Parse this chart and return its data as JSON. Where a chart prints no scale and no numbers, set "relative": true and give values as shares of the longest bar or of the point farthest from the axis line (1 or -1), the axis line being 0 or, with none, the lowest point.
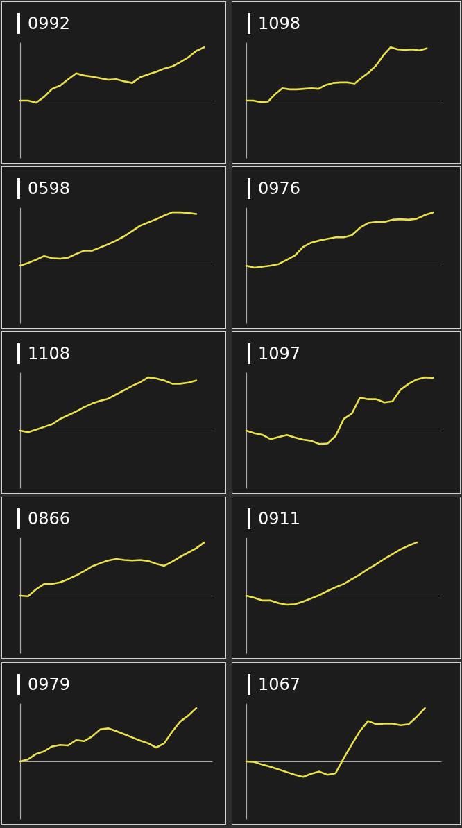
{
  "chart_data": [
    {
      "type": "line",
      "title": "0992",
      "categories": [
        null,
        null,
        null,
        null,
        null,
        null,
        null,
        null,
        null,
        null,
        null,
        null,
        null,
        null,
        null,
        null,
        null,
        null,
        null,
        null,
        null,
        null,
        null,
        null,
        null
      ],
      "values": [
        0,
        0,
        -0.04,
        0.07,
        0.22,
        0.28,
        0.4,
        0.51,
        0.47,
        0.45,
        0.42,
        0.39,
        0.4,
        0.36,
        0.33,
        0.44,
        0.49,
        0.54,
        0.6,
        0.64,
        0.72,
        0.81,
        0.93,
        1,
        null
      ],
      "color": "#ebe04b",
      "relative": true,
      "tick_labels": false
    },
    {
      "type": "line",
      "title": "1098",
      "categories": [
        null,
        null,
        null,
        null,
        null,
        null,
        null,
        null,
        null,
        null,
        null,
        null,
        null,
        null,
        null,
        null,
        null,
        null,
        null,
        null,
        null,
        null,
        null,
        null,
        null,
        null,
        null,
        null
      ],
      "values": [
        0,
        0,
        -0.03,
        -0.02,
        0.12,
        0.23,
        0.21,
        0.21,
        0.22,
        0.23,
        0.22,
        0.29,
        0.33,
        0.34,
        0.34,
        0.32,
        0.43,
        0.53,
        0.66,
        0.85,
        1,
        0.96,
        0.95,
        0.96,
        0.94,
        0.98,
        null,
        null
      ],
      "color": "#ebe04b",
      "relative": true,
      "tick_labels": false
    },
    {
      "type": "line",
      "title": "0598",
      "categories": [
        null,
        null,
        null,
        null,
        null,
        null,
        null,
        null,
        null,
        null,
        null,
        null,
        null,
        null,
        null,
        null,
        null,
        null,
        null,
        null,
        null,
        null,
        null,
        null,
        null
      ],
      "values": [
        0,
        0.05,
        0.11,
        0.18,
        0.14,
        0.13,
        0.15,
        0.22,
        0.28,
        0.28,
        0.34,
        0.4,
        0.47,
        0.55,
        0.65,
        0.75,
        0.81,
        0.87,
        0.94,
        1,
        1,
        0.99,
        0.97,
        null,
        null
      ],
      "color": "#ebe04b",
      "relative": true,
      "tick_labels": false
    },
    {
      "type": "line",
      "title": "0976",
      "categories": [
        null,
        null,
        null,
        null,
        null,
        null,
        null,
        null,
        null,
        null,
        null,
        null,
        null,
        null,
        null,
        null,
        null,
        null,
        null,
        null,
        null,
        null,
        null,
        null,
        null
      ],
      "values": [
        0,
        -0.04,
        -0.02,
        0,
        0.03,
        0.11,
        0.19,
        0.35,
        0.43,
        0.47,
        0.5,
        0.53,
        0.53,
        0.57,
        0.71,
        0.8,
        0.82,
        0.82,
        0.86,
        0.87,
        0.86,
        0.88,
        0.95,
        1,
        null
      ],
      "color": "#ebe04b",
      "relative": true,
      "tick_labels": false
    },
    {
      "type": "line",
      "title": "1108",
      "categories": [
        null,
        null,
        null,
        null,
        null,
        null,
        null,
        null,
        null,
        null,
        null,
        null,
        null,
        null,
        null,
        null,
        null,
        null,
        null,
        null,
        null,
        null,
        null,
        null,
        null
      ],
      "values": [
        0,
        -0.03,
        0.02,
        0.07,
        0.12,
        0.22,
        0.29,
        0.36,
        0.44,
        0.51,
        0.56,
        0.6,
        0.68,
        0.76,
        0.84,
        0.91,
        1,
        0.98,
        0.94,
        0.88,
        0.88,
        0.9,
        0.94,
        null,
        null
      ],
      "color": "#ebe04b",
      "relative": true,
      "tick_labels": false
    },
    {
      "type": "line",
      "title": "1097",
      "categories": [
        null,
        null,
        null,
        null,
        null,
        null,
        null,
        null,
        null,
        null,
        null,
        null,
        null,
        null,
        null,
        null,
        null,
        null,
        null,
        null,
        null,
        null,
        null,
        null,
        null
      ],
      "values": [
        0,
        -0.05,
        -0.08,
        -0.16,
        -0.12,
        -0.08,
        -0.13,
        -0.17,
        -0.19,
        -0.25,
        -0.24,
        -0.1,
        0.22,
        0.32,
        0.62,
        0.59,
        0.59,
        0.53,
        0.55,
        0.77,
        0.88,
        0.96,
        1,
        0.99,
        null
      ],
      "color": "#ebe04b",
      "relative": true,
      "tick_labels": false
    },
    {
      "type": "line",
      "title": "0866",
      "categories": [
        null,
        null,
        null,
        null,
        null,
        null,
        null,
        null,
        null,
        null,
        null,
        null,
        null,
        null,
        null,
        null,
        null,
        null,
        null,
        null,
        null,
        null,
        null,
        null,
        null
      ],
      "values": [
        0,
        -0.01,
        0.12,
        0.22,
        0.22,
        0.25,
        0.31,
        0.38,
        0.46,
        0.55,
        0.61,
        0.66,
        0.69,
        0.67,
        0.66,
        0.67,
        0.65,
        0.6,
        0.56,
        0.64,
        0.73,
        0.81,
        0.89,
        1,
        null
      ],
      "color": "#ebe04b",
      "relative": true,
      "tick_labels": false
    },
    {
      "type": "line",
      "title": "0911",
      "categories": [
        null,
        null,
        null,
        null,
        null,
        null,
        null,
        null,
        null,
        null,
        null,
        null,
        null,
        null,
        null,
        null,
        null,
        null,
        null,
        null,
        null,
        null,
        null,
        null,
        null
      ],
      "values": [
        0,
        -0.04,
        -0.09,
        -0.09,
        -0.14,
        -0.17,
        -0.16,
        -0.11,
        -0.05,
        0.01,
        0.09,
        0.16,
        0.22,
        0.31,
        0.4,
        0.5,
        0.59,
        0.69,
        0.78,
        0.87,
        0.94,
        1,
        null,
        null,
        null
      ],
      "color": "#ebe04b",
      "relative": true,
      "tick_labels": false
    },
    {
      "type": "line",
      "title": "0979",
      "categories": [
        null,
        null,
        null,
        null,
        null,
        null,
        null,
        null,
        null,
        null,
        null,
        null,
        null,
        null,
        null,
        null,
        null,
        null,
        null,
        null,
        null,
        null,
        null,
        null,
        null
      ],
      "values": [
        0,
        0.04,
        0.14,
        0.19,
        0.28,
        0.31,
        0.3,
        0.4,
        0.38,
        0.47,
        0.6,
        0.62,
        0.57,
        0.51,
        0.45,
        0.39,
        0.34,
        0.26,
        0.34,
        0.56,
        0.75,
        0.86,
        1,
        null,
        null
      ],
      "color": "#ebe04b",
      "relative": true,
      "tick_labels": false
    },
    {
      "type": "line",
      "title": "1067",
      "categories": [
        null,
        null,
        null,
        null,
        null,
        null,
        null,
        null,
        null,
        null,
        null,
        null,
        null,
        null,
        null,
        null,
        null,
        null,
        null,
        null,
        null,
        null,
        null,
        null,
        null
      ],
      "values": [
        0,
        -0.01,
        -0.06,
        -0.1,
        -0.15,
        -0.2,
        -0.25,
        -0.29,
        -0.23,
        -0.19,
        -0.25,
        -0.22,
        0.06,
        0.32,
        0.57,
        0.76,
        0.7,
        0.71,
        0.71,
        0.68,
        0.7,
        0.84,
        1,
        null,
        null
      ],
      "color": "#ebe04b",
      "relative": true,
      "tick_labels": false
    }
  ]
}
